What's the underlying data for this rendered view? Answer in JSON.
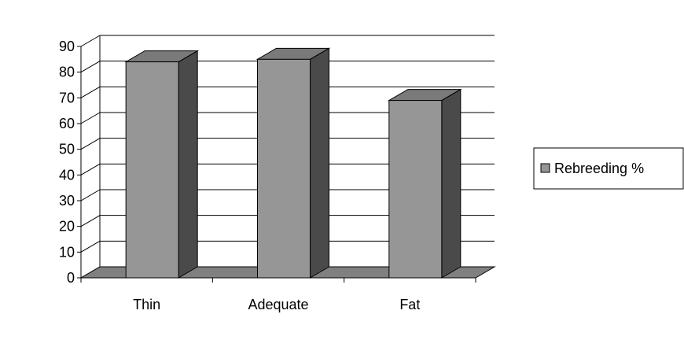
{
  "chart_data": {
    "type": "bar",
    "categories": [
      "Thin",
      "Adequate",
      "Fat"
    ],
    "series": [
      {
        "name": "Rebreeding %",
        "values": [
          84,
          85,
          69
        ]
      }
    ],
    "ylim": [
      0,
      90
    ],
    "yticks": [
      0,
      10,
      20,
      30,
      40,
      50,
      60,
      70,
      80,
      90
    ],
    "grid": true,
    "legend_position": "right",
    "colors": {
      "bar_front": "#969696",
      "bar_side": "#4a4a4a",
      "bar_top": "#7a7a7a",
      "floor": "#808080"
    }
  }
}
